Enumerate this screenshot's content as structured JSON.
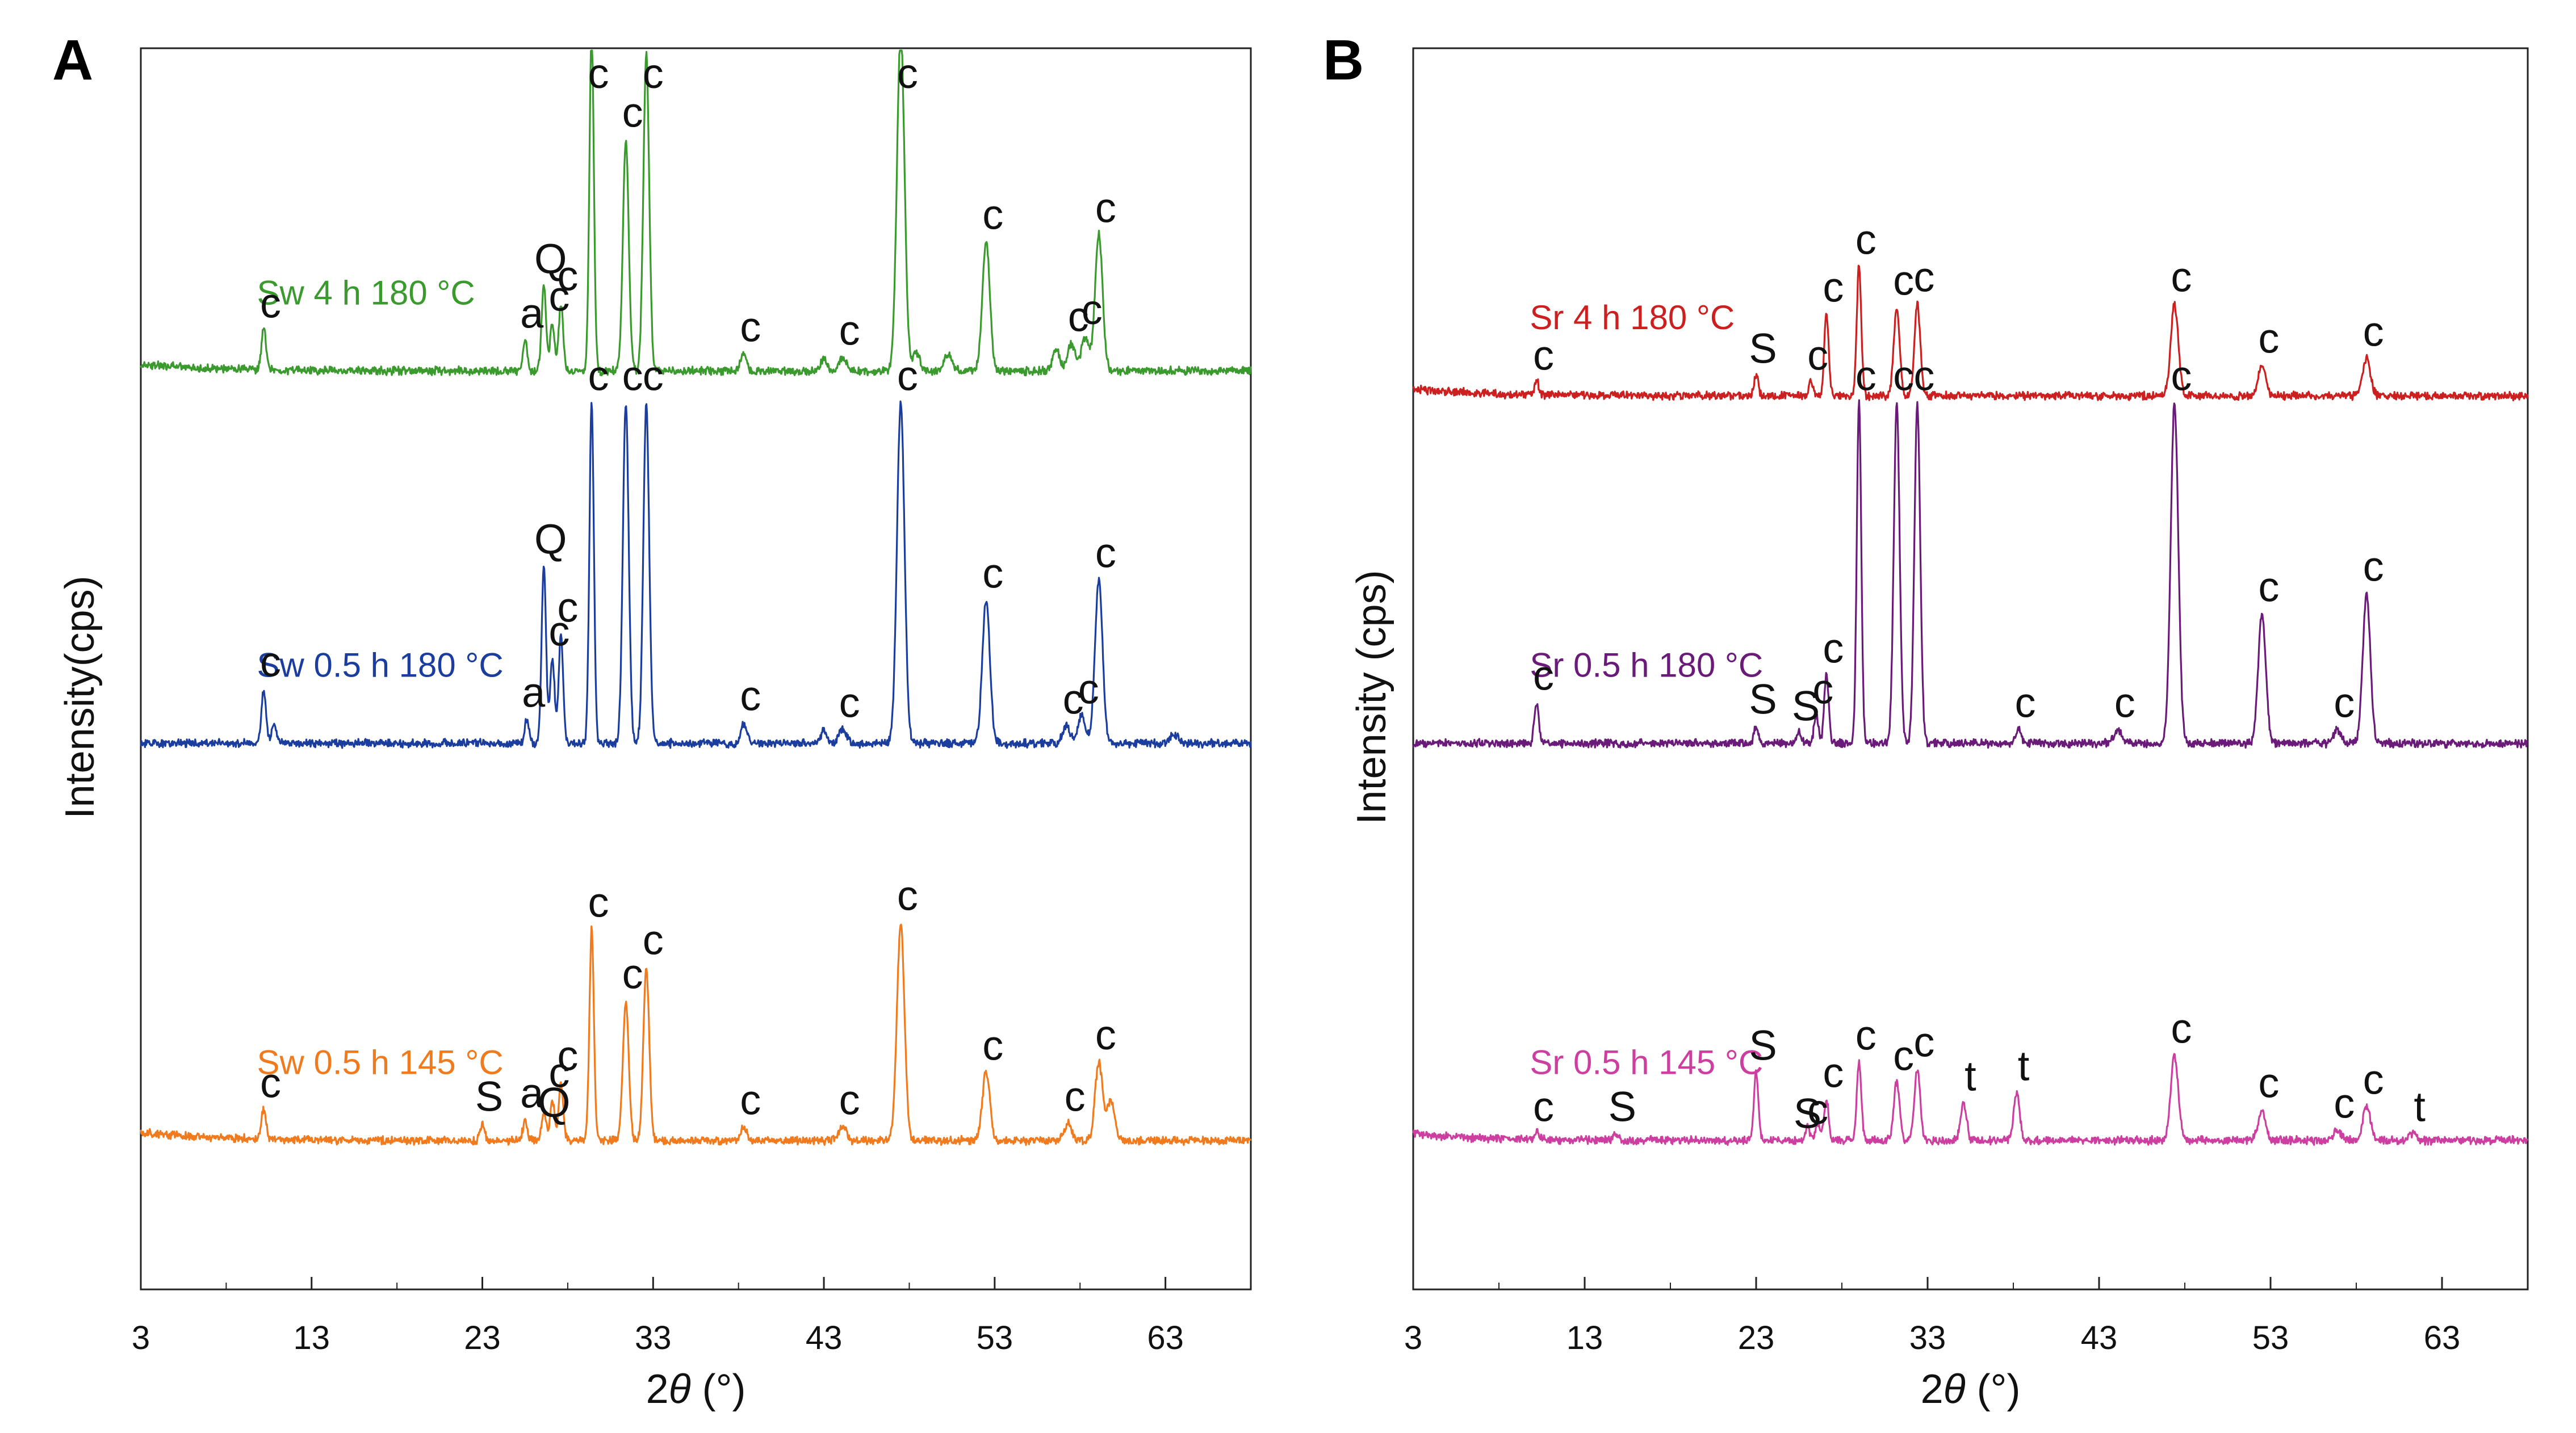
{
  "chart_data": [
    {
      "type": "line",
      "panel": "A",
      "xlabel_pre": "2",
      "xlabel_theta": "θ",
      "xlabel_post": " (°)",
      "ylabel": "Intensity(cps)",
      "xlim": [
        3,
        68
      ],
      "xticks": [
        3,
        13,
        23,
        33,
        43,
        53,
        63
      ],
      "series": [
        {
          "name": "Sw 4 h 180 °C",
          "color": "#3a9a2e",
          "baseline": 0.74,
          "drift": 0.02,
          "peaks": [
            [
              10.2,
              0.12
            ],
            [
              25.5,
              0.09
            ],
            [
              26.6,
              0.25
            ],
            [
              27.1,
              0.14
            ],
            [
              27.6,
              0.2
            ],
            [
              29.4,
              1.0
            ],
            [
              31.4,
              0.68
            ],
            [
              32.6,
              0.93
            ],
            [
              38.3,
              0.05
            ],
            [
              43.0,
              0.04
            ],
            [
              44.1,
              0.04
            ],
            [
              47.5,
              1.0
            ],
            [
              48.4,
              0.05
            ],
            [
              50.3,
              0.05
            ],
            [
              52.5,
              0.38
            ],
            [
              56.6,
              0.06
            ],
            [
              57.5,
              0.08
            ],
            [
              58.3,
              0.1
            ],
            [
              59.1,
              0.4
            ]
          ],
          "labels": [
            [
              10.2,
              "c"
            ],
            [
              25.5,
              "a"
            ],
            [
              26.6,
              "Q"
            ],
            [
              27.1,
              "c"
            ],
            [
              27.6,
              "c"
            ],
            [
              29.4,
              "c"
            ],
            [
              31.4,
              "c"
            ],
            [
              32.6,
              "c"
            ],
            [
              38.3,
              "c"
            ],
            [
              44.1,
              "c"
            ],
            [
              47.5,
              "c"
            ],
            [
              52.5,
              "c"
            ],
            [
              57.5,
              "c"
            ],
            [
              58.3,
              "c"
            ],
            [
              59.1,
              "c"
            ]
          ]
        },
        {
          "name": "Sw 0.5 h 180 °C",
          "color": "#1a3d9e",
          "baseline": 0.44,
          "drift": 0.0,
          "peaks": [
            [
              10.2,
              0.16
            ],
            [
              10.8,
              0.06
            ],
            [
              25.6,
              0.07
            ],
            [
              26.6,
              0.52
            ],
            [
              27.1,
              0.25
            ],
            [
              27.6,
              0.32
            ],
            [
              29.4,
              1.0
            ],
            [
              31.4,
              1.0
            ],
            [
              32.6,
              1.0
            ],
            [
              38.3,
              0.06
            ],
            [
              43.0,
              0.04
            ],
            [
              44.1,
              0.04
            ],
            [
              47.5,
              1.0
            ],
            [
              52.5,
              0.42
            ],
            [
              57.2,
              0.05
            ],
            [
              58.1,
              0.08
            ],
            [
              59.1,
              0.48
            ],
            [
              63.5,
              0.03
            ]
          ],
          "labels": [
            [
              10.2,
              "c"
            ],
            [
              25.6,
              "a"
            ],
            [
              26.6,
              "Q"
            ],
            [
              27.1,
              "c"
            ],
            [
              27.6,
              "c"
            ],
            [
              29.4,
              "c"
            ],
            [
              31.4,
              "c"
            ],
            [
              32.6,
              "c"
            ],
            [
              38.3,
              "c"
            ],
            [
              44.1,
              "c"
            ],
            [
              47.5,
              "c"
            ],
            [
              52.5,
              "c"
            ],
            [
              57.2,
              "c"
            ],
            [
              58.1,
              "c"
            ],
            [
              59.1,
              "c"
            ]
          ]
        },
        {
          "name": "Sw 0.5 h 145 °C",
          "color": "#f07a1e",
          "baseline": 0.12,
          "drift": 0.025,
          "peaks": [
            [
              10.2,
              0.09
            ],
            [
              23.0,
              0.05
            ],
            [
              25.5,
              0.06
            ],
            [
              26.6,
              0.08
            ],
            [
              27.1,
              0.12
            ],
            [
              27.6,
              0.17
            ],
            [
              29.4,
              0.62
            ],
            [
              31.4,
              0.41
            ],
            [
              32.6,
              0.51
            ],
            [
              38.3,
              0.04
            ],
            [
              44.1,
              0.04
            ],
            [
              47.5,
              0.64
            ],
            [
              52.5,
              0.2
            ],
            [
              57.3,
              0.05
            ],
            [
              59.1,
              0.23
            ],
            [
              59.8,
              0.12
            ]
          ],
          "labels": [
            [
              10.2,
              "c"
            ],
            [
              23.0,
              "S"
            ],
            [
              25.5,
              "a"
            ],
            [
              26.8,
              "Q"
            ],
            [
              27.1,
              "c"
            ],
            [
              27.6,
              "c"
            ],
            [
              29.4,
              "c"
            ],
            [
              31.4,
              "c"
            ],
            [
              32.6,
              "c"
            ],
            [
              38.3,
              "c"
            ],
            [
              44.1,
              "c"
            ],
            [
              47.5,
              "c"
            ],
            [
              52.5,
              "c"
            ],
            [
              57.3,
              "c"
            ],
            [
              59.1,
              "c"
            ]
          ]
        }
      ]
    },
    {
      "type": "line",
      "panel": "B",
      "xlabel_pre": "2",
      "xlabel_theta": "θ",
      "xlabel_post": " (°)",
      "ylabel": "Intensity (cps)",
      "xlim": [
        3,
        68
      ],
      "xticks": [
        3,
        13,
        23,
        33,
        43,
        53,
        63
      ],
      "series": [
        {
          "name": "Sr 4 h 180 °C",
          "color": "#cc1f1f",
          "baseline": 0.72,
          "drift": 0.02,
          "peaks": [
            [
              10.2,
              0.04
            ],
            [
              23.0,
              0.06
            ],
            [
              26.2,
              0.04
            ],
            [
              27.1,
              0.24
            ],
            [
              29.0,
              0.38
            ],
            [
              31.2,
              0.26
            ],
            [
              32.4,
              0.27
            ],
            [
              47.4,
              0.27
            ],
            [
              52.5,
              0.09
            ],
            [
              58.6,
              0.11
            ]
          ],
          "labels": [
            [
              10.2,
              "c"
            ],
            [
              23.0,
              "S"
            ],
            [
              26.2,
              "c"
            ],
            [
              27.1,
              "c"
            ],
            [
              29.0,
              "c"
            ],
            [
              31.2,
              "c"
            ],
            [
              32.4,
              "c"
            ],
            [
              47.4,
              "c"
            ],
            [
              52.5,
              "c"
            ],
            [
              58.6,
              "c"
            ]
          ]
        },
        {
          "name": "Sr 0.5 h 180 °C",
          "color": "#6a1a78",
          "baseline": 0.44,
          "drift": 0.0,
          "peaks": [
            [
              10.2,
              0.12
            ],
            [
              23.0,
              0.05
            ],
            [
              25.5,
              0.03
            ],
            [
              26.5,
              0.08
            ],
            [
              27.1,
              0.2
            ],
            [
              29.0,
              1.0
            ],
            [
              31.2,
              1.0
            ],
            [
              32.4,
              1.0
            ],
            [
              38.3,
              0.04
            ],
            [
              44.1,
              0.04
            ],
            [
              47.4,
              1.0
            ],
            [
              52.5,
              0.38
            ],
            [
              56.9,
              0.04
            ],
            [
              58.6,
              0.44
            ]
          ],
          "labels": [
            [
              10.2,
              "c"
            ],
            [
              23.0,
              "S"
            ],
            [
              25.5,
              "S"
            ],
            [
              26.5,
              "c"
            ],
            [
              27.1,
              "c"
            ],
            [
              29.0,
              "c"
            ],
            [
              31.2,
              "c"
            ],
            [
              32.4,
              "c"
            ],
            [
              38.3,
              "c"
            ],
            [
              44.1,
              "c"
            ],
            [
              47.4,
              "c"
            ],
            [
              52.5,
              "c"
            ],
            [
              56.9,
              "c"
            ],
            [
              58.6,
              "c"
            ]
          ]
        },
        {
          "name": "Sr 0.5 h 145 °C",
          "color": "#cc3fa0",
          "baseline": 0.12,
          "drift": 0.02,
          "peaks": [
            [
              10.2,
              0.02
            ],
            [
              14.8,
              0.02
            ],
            [
              23.0,
              0.2
            ],
            [
              26.0,
              0.04
            ],
            [
              26.6,
              0.05
            ],
            [
              27.1,
              0.12
            ],
            [
              29.0,
              0.23
            ],
            [
              31.2,
              0.17
            ],
            [
              32.4,
              0.21
            ],
            [
              35.1,
              0.11
            ],
            [
              38.2,
              0.14
            ],
            [
              47.4,
              0.25
            ],
            [
              52.5,
              0.09
            ],
            [
              56.9,
              0.03
            ],
            [
              58.6,
              0.1
            ],
            [
              61.3,
              0.02
            ]
          ],
          "labels": [
            [
              10.2,
              "c"
            ],
            [
              14.8,
              "S"
            ],
            [
              23.0,
              "S"
            ],
            [
              25.6,
              "S"
            ],
            [
              26.2,
              "c"
            ],
            [
              27.1,
              "c"
            ],
            [
              29.0,
              "c"
            ],
            [
              31.2,
              "c"
            ],
            [
              32.4,
              "c"
            ],
            [
              35.1,
              "t"
            ],
            [
              38.2,
              "t"
            ],
            [
              47.4,
              "c"
            ],
            [
              52.5,
              "c"
            ],
            [
              56.9,
              "c"
            ],
            [
              58.6,
              "c"
            ],
            [
              61.3,
              "t"
            ]
          ]
        }
      ]
    }
  ]
}
